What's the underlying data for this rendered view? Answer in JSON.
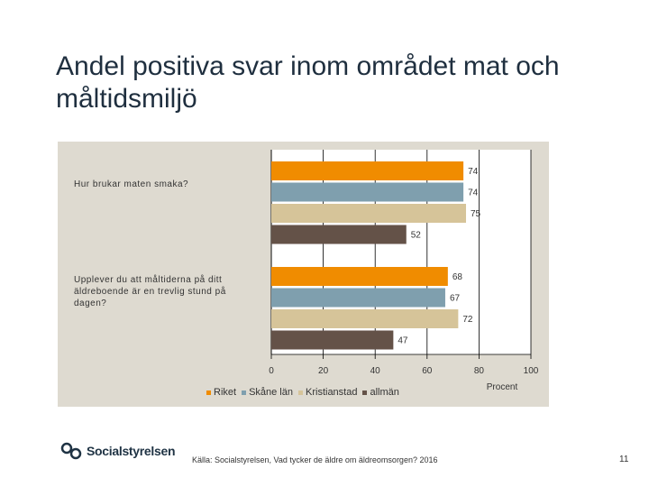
{
  "slide": {
    "title": "Andel positiva svar inom området mat och måltidsmiljö",
    "source": "Källa: Socialstyrelsen, Vad tycker de äldre om äldreomsorgen? 2016",
    "page_number": "11",
    "logo_text": "Socialstyrelsen"
  },
  "chart_data": {
    "type": "bar",
    "orientation": "horizontal",
    "title": "",
    "xlabel": "Procent",
    "ylabel": "",
    "xlim": [
      0,
      100
    ],
    "xticks": [
      "0",
      "20",
      "40",
      "60",
      "80",
      "100"
    ],
    "categories": [
      "Hur brukar maten smaka?",
      "Upplever du att måltiderna på ditt äldreboende är en trevlig stund på dagen?"
    ],
    "series": [
      {
        "name": "Riket",
        "color": "#f08c00",
        "values": [
          74,
          68
        ]
      },
      {
        "name": "Skåne län",
        "color": "#7f9fae",
        "values": [
          74,
          67
        ]
      },
      {
        "name": "Kristianstad",
        "color": "#d6c499",
        "values": [
          75,
          72
        ]
      },
      {
        "name": "allmän",
        "color": "#645248",
        "values": [
          52,
          47
        ]
      }
    ],
    "legend_position": "bottom",
    "grid": true
  }
}
